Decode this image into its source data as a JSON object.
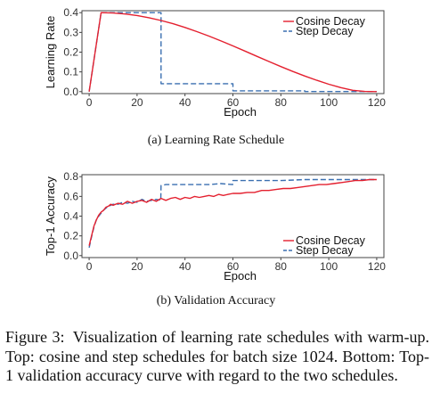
{
  "figure": {
    "label": "Figure 3:",
    "caption": "Visualization of learning rate schedules with warm-up. Top: cosine and step schedules for batch size 1024. Bottom: Top-1 validation accuracy curve with regard to the two schedules."
  },
  "colors": {
    "cosine": "#e4202f",
    "step": "#3a6fb0",
    "axis": "#444444"
  },
  "chart_data": [
    {
      "type": "line",
      "subcaption": "(a) Learning Rate Schedule",
      "xlabel": "Epoch",
      "ylabel": "Learning Rate",
      "xlim": [
        -3,
        123
      ],
      "ylim": [
        -0.01,
        0.41
      ],
      "xticks": [
        0,
        20,
        40,
        60,
        80,
        100,
        120
      ],
      "xtick_labels": [
        "0",
        "20",
        "40",
        "60",
        "80",
        "100",
        "120"
      ],
      "yticks": [
        0.0,
        0.1,
        0.2,
        0.3,
        0.4
      ],
      "ytick_labels": [
        "0.0",
        "0.1",
        "0.2",
        "0.3",
        "0.4"
      ],
      "legend_position": "top-right",
      "series": [
        {
          "name": "Cosine Decay",
          "style": "solid",
          "x": [
            0,
            5,
            10,
            15,
            20,
            25,
            30,
            35,
            40,
            45,
            50,
            55,
            60,
            65,
            70,
            75,
            80,
            85,
            90,
            95,
            100,
            105,
            110,
            115,
            120
          ],
          "y": [
            0.0,
            0.4,
            0.3984,
            0.3935,
            0.3855,
            0.3744,
            0.3605,
            0.344,
            0.3251,
            0.304,
            0.2811,
            0.2568,
            0.2314,
            0.2053,
            0.1789,
            0.1527,
            0.127,
            0.1022,
            0.0788,
            0.0571,
            0.0374,
            0.0202,
            0.0068,
            0.0007,
            0.0
          ]
        },
        {
          "name": "Step Decay",
          "style": "dashed",
          "x": [
            0,
            5,
            30,
            30,
            60,
            60,
            90,
            90,
            120
          ],
          "y": [
            0.0,
            0.4,
            0.4,
            0.04,
            0.04,
            0.004,
            0.004,
            0.0004,
            0.0004
          ]
        }
      ]
    },
    {
      "type": "line",
      "subcaption": "(b) Validation Accuracy",
      "xlabel": "Epoch",
      "ylabel": "Top-1 Accuracy",
      "xlim": [
        -3,
        123
      ],
      "ylim": [
        -0.02,
        0.82
      ],
      "xticks": [
        0,
        20,
        40,
        60,
        80,
        100,
        120
      ],
      "xtick_labels": [
        "0",
        "20",
        "40",
        "60",
        "80",
        "100",
        "120"
      ],
      "yticks": [
        0.0,
        0.2,
        0.4,
        0.6,
        0.8
      ],
      "ytick_labels": [
        "0.0",
        "0.2",
        "0.4",
        "0.6",
        "0.8"
      ],
      "legend_position": "bottom-right",
      "series": [
        {
          "name": "Cosine Decay",
          "style": "solid",
          "x": [
            0,
            1,
            2,
            3,
            4,
            5,
            6,
            7,
            8,
            9,
            10,
            12,
            14,
            16,
            18,
            20,
            22,
            24,
            26,
            28,
            30,
            32,
            34,
            36,
            38,
            40,
            42,
            44,
            46,
            48,
            50,
            52,
            54,
            56,
            58,
            60,
            63,
            66,
            69,
            72,
            75,
            78,
            81,
            84,
            87,
            90,
            93,
            96,
            99,
            102,
            105,
            108,
            111,
            114,
            117,
            120
          ],
          "y": [
            0.1,
            0.2,
            0.3,
            0.36,
            0.41,
            0.44,
            0.46,
            0.49,
            0.5,
            0.52,
            0.51,
            0.53,
            0.52,
            0.55,
            0.53,
            0.55,
            0.56,
            0.54,
            0.57,
            0.55,
            0.58,
            0.56,
            0.58,
            0.59,
            0.57,
            0.59,
            0.58,
            0.6,
            0.59,
            0.6,
            0.61,
            0.6,
            0.62,
            0.61,
            0.62,
            0.63,
            0.63,
            0.64,
            0.64,
            0.66,
            0.66,
            0.67,
            0.68,
            0.68,
            0.69,
            0.7,
            0.71,
            0.72,
            0.72,
            0.73,
            0.74,
            0.75,
            0.76,
            0.76,
            0.77,
            0.77
          ]
        },
        {
          "name": "Step Decay",
          "style": "dashed",
          "x": [
            0,
            1,
            2,
            3,
            4,
            5,
            6,
            7,
            8,
            9,
            10,
            12,
            14,
            16,
            18,
            20,
            22,
            24,
            26,
            28,
            29.9,
            30,
            32,
            35,
            40,
            45,
            50,
            55,
            59.9,
            60,
            70,
            80,
            90,
            100,
            110,
            120
          ],
          "y": [
            0.08,
            0.19,
            0.29,
            0.36,
            0.4,
            0.43,
            0.46,
            0.48,
            0.5,
            0.51,
            0.52,
            0.52,
            0.54,
            0.53,
            0.55,
            0.54,
            0.57,
            0.55,
            0.56,
            0.57,
            0.56,
            0.71,
            0.72,
            0.72,
            0.72,
            0.72,
            0.72,
            0.73,
            0.72,
            0.76,
            0.76,
            0.76,
            0.77,
            0.77,
            0.77,
            0.77
          ]
        }
      ]
    }
  ]
}
